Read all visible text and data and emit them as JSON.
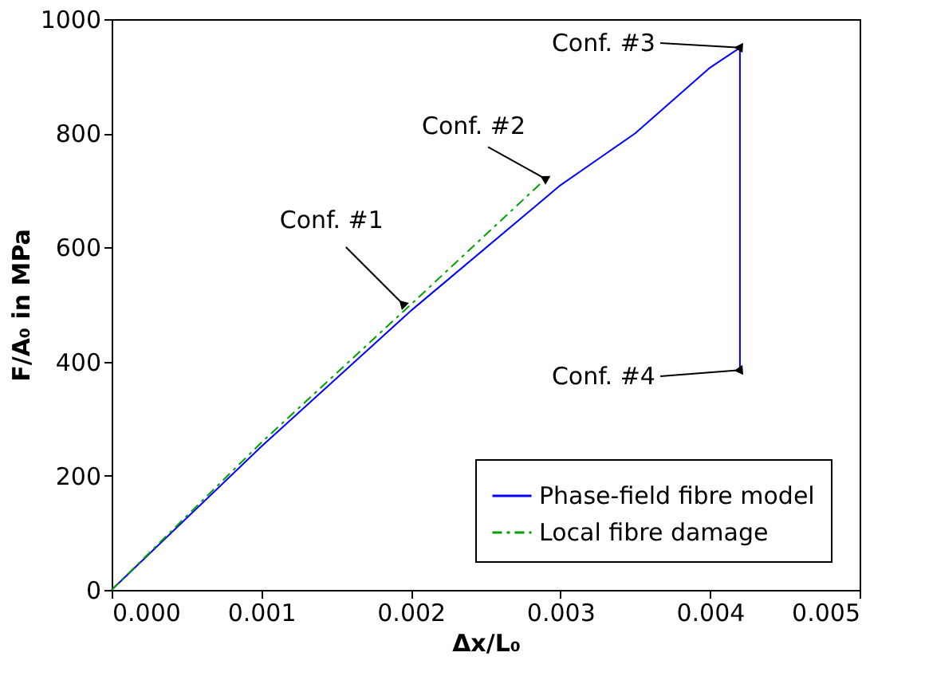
{
  "chart_data": {
    "type": "line",
    "xlabel": "Δx/L₀",
    "ylabel": "F/A₀ in MPa",
    "xlim": [
      0,
      0.005
    ],
    "xticks": [
      {
        "value": 0,
        "label": "0.000"
      },
      {
        "value": 0.001,
        "label": "0.001"
      },
      {
        "value": 0.002,
        "label": "0.002"
      },
      {
        "value": 0.003,
        "label": "0.003"
      },
      {
        "value": 0.004,
        "label": "0.004"
      },
      {
        "value": 0.005,
        "label": "0.005"
      }
    ],
    "ylim": [
      0,
      1000
    ],
    "yticks": [
      0,
      200,
      400,
      600,
      800,
      1000
    ],
    "series": [
      {
        "name": "Phase-field fibre model",
        "color": "#0000ff",
        "line_style": "solid",
        "x": [
          0,
          0.001,
          0.002,
          0.003,
          0.0035,
          0.004,
          0.0042,
          0.0042
        ],
        "values": [
          0,
          251,
          489,
          709,
          800,
          915,
          950,
          385
        ]
      },
      {
        "name": "Local fibre damage",
        "color": "#00a000",
        "line_style": "dashdot",
        "x": [
          0,
          0.001,
          0.002,
          0.0029
        ],
        "values": [
          0,
          258,
          500,
          720
        ]
      }
    ],
    "annotations": [
      {
        "text": "Conf. #1",
        "x": 0.00195,
        "y": 500
      },
      {
        "text": "Conf. #2",
        "x": 0.0029,
        "y": 720
      },
      {
        "text": "Conf. #3",
        "x": 0.0042,
        "y": 950
      },
      {
        "text": "Conf. #4",
        "x": 0.0042,
        "y": 385
      }
    ],
    "legend": "bottom right",
    "grid": false
  }
}
